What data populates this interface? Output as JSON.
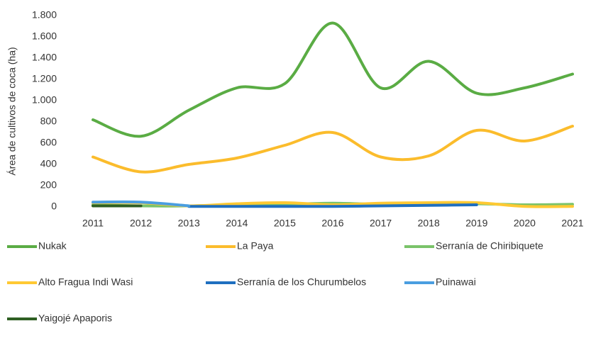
{
  "chart_data": {
    "type": "line",
    "ylabel": "Área de cultivos de coca (ha)",
    "categories": [
      "2011",
      "2012",
      "2013",
      "2014",
      "2015",
      "2016",
      "2017",
      "2018",
      "2019",
      "2020",
      "2021"
    ],
    "ylim": [
      0,
      1800
    ],
    "yticks": [
      0,
      200,
      400,
      600,
      800,
      {
        "value": 1000,
        "label": "1.000"
      },
      {
        "value": 1200,
        "label": "1.200"
      },
      {
        "value": 1400,
        "label": "1.400"
      },
      {
        "value": 1600,
        "label": "1.600"
      },
      {
        "value": 1800,
        "label": "1.800"
      }
    ],
    "grid": false,
    "series": [
      {
        "name": "Nukak",
        "color": "#5aac44",
        "values": [
          820,
          665,
          910,
          1120,
          1160,
          1730,
          1120,
          1370,
          1070,
          1120,
          1250
        ]
      },
      {
        "name": "La Paya",
        "color": "#fbbc2c",
        "values": [
          470,
          330,
          400,
          460,
          580,
          700,
          470,
          480,
          720,
          620,
          760
        ]
      },
      {
        "name": "Serranía de Chiribiquete",
        "color": "#7ac36a",
        "values": [
          20,
          10,
          10,
          20,
          25,
          35,
          25,
          30,
          30,
          20,
          25
        ]
      },
      {
        "name": "Alto Fragua Indi Wasi",
        "color": "#ffc933",
        "values": [
          40,
          40,
          10,
          30,
          40,
          20,
          35,
          40,
          40,
          5,
          5
        ]
      },
      {
        "name": "Serranía de los Churumbelos",
        "color": "#1f6fc0",
        "values": [
          null,
          null,
          5,
          5,
          5,
          5,
          10,
          15,
          20,
          null,
          null
        ]
      },
      {
        "name": "Puinawai",
        "color": "#4a9ee0",
        "values": [
          45,
          45,
          10,
          null,
          null,
          null,
          null,
          null,
          null,
          null,
          null
        ]
      },
      {
        "name": "Yaigojé Apaporis",
        "color": "#2f5f23",
        "values": [
          10,
          10,
          null,
          null,
          null,
          null,
          null,
          null,
          null,
          null,
          null
        ]
      }
    ]
  }
}
